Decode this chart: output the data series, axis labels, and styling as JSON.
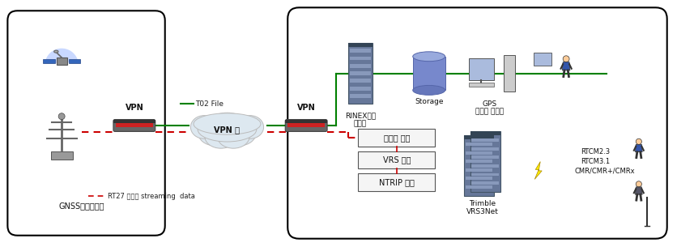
{
  "white": "#ffffff",
  "black": "#000000",
  "green_line": "#008000",
  "red_dashed": "#cc0000",
  "figsize": [
    8.57,
    3.05
  ],
  "dpi": 100,
  "vpn_label": "VPN",
  "vpn2_label": "VPN",
  "cloud_label": "VPN 망",
  "gnss_label": "GNSS위성기준점",
  "t02_label": "T02 File",
  "rt27_label": "RT27 실시간 streaming  data",
  "rinex_label1": "RINEX변환",
  "rinex_label2": "시스템",
  "storage_label": "Storage",
  "gps_label1": "GPS",
  "gps_label2": "기준점 서비스",
  "data_recv": "데이터 수신",
  "vrs_gen": "VRS 생성",
  "ntrip": "NTRIP 방송",
  "trimble1": "Trimble",
  "trimble2": "VRS3Net",
  "rtcm1": "RTCM2.3",
  "rtcm2": "RTCM3.1",
  "rtcm3": "CMR/CMR+/CMRx"
}
